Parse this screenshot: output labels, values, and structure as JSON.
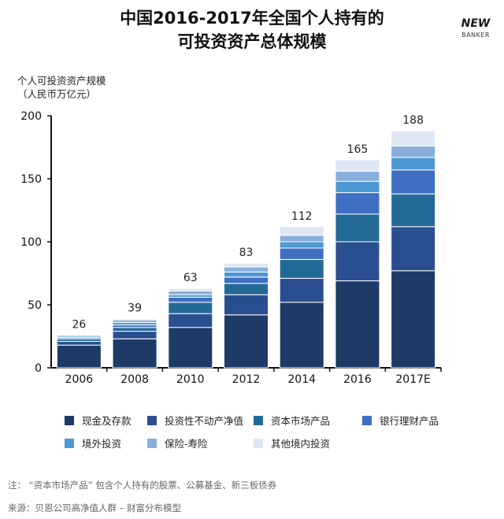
{
  "title_line1": "中国2016-2017年全国个人持有的",
  "title_line2": "可投资资产总体规模",
  "logo": {
    "top": "NEW",
    "bottom": "BANKER"
  },
  "ylabel_line1": "个人可投资资产规模",
  "ylabel_line2": "（人民币万亿元）",
  "note": "注：  “资本市场产品” 包含个人持有的股票、公募基金、新三板债券",
  "source": "来源：贝恩公司高净值人群 – 财富分布模型",
  "colors": [
    "#1e3a66",
    "#2a4f91",
    "#236996",
    "#3f6fc2",
    "#4c98d3",
    "#8aaedb",
    "#dde7f4"
  ],
  "chart_data": {
    "type": "bar",
    "stacked": true,
    "categories": [
      "2006",
      "2008",
      "2010",
      "2012",
      "2014",
      "2016",
      "2017E"
    ],
    "totals": [
      26,
      39,
      63,
      83,
      112,
      165,
      188
    ],
    "ylim": [
      0,
      200
    ],
    "yticks": [
      0,
      50,
      100,
      150,
      200
    ],
    "series": [
      {
        "name": "现金及存款",
        "values": [
          18,
          23,
          32,
          42,
          52,
          69,
          77
        ]
      },
      {
        "name": "投资性不动产净值",
        "values": [
          3,
          6,
          11,
          16,
          19,
          31,
          35
        ]
      },
      {
        "name": "资本市场产品",
        "values": [
          2,
          3,
          9,
          9,
          15,
          22,
          26
        ]
      },
      {
        "name": "银行理财产品",
        "values": [
          1,
          2,
          4,
          5,
          9,
          17,
          19
        ]
      },
      {
        "name": "境外投资",
        "values": [
          1,
          2,
          2,
          4,
          5,
          9,
          10
        ]
      },
      {
        "name": "保险-寿险",
        "values": [
          1,
          2,
          3,
          4,
          5,
          8,
          9
        ]
      },
      {
        "name": "其他境内投资",
        "values": [
          0,
          1,
          2,
          3,
          7,
          9,
          12
        ]
      }
    ],
    "legend_position": "bottom"
  }
}
